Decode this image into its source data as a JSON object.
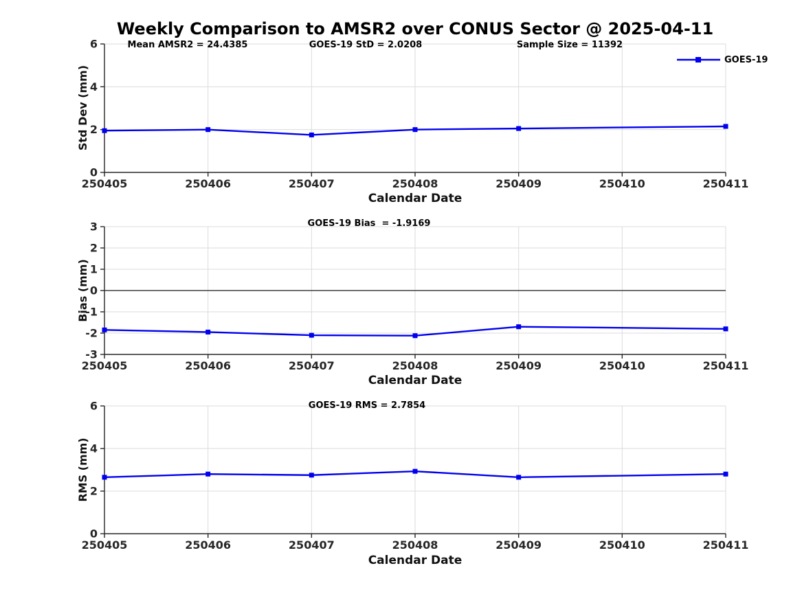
{
  "title": "Weekly Comparison to AMSR2 over CONUS Sector @ 2025-04-11",
  "legend": {
    "label": "GOES-19"
  },
  "colors": {
    "line": "#0000EE",
    "axis": "#262626",
    "grid": "#DBDBDB",
    "zero_line": "#404040",
    "background": "#FFFFFF"
  },
  "chart_data": [
    {
      "type": "line",
      "name": "std-dev",
      "ylabel": "Std Dev (mm)",
      "xlabel": "Calendar Date",
      "annotations": [
        "Mean AMSR2 = 24.4385",
        "GOES-19 StD = 2.0208",
        "Sample Size = 11392"
      ],
      "categories": [
        "250405",
        "250406",
        "250407",
        "250408",
        "250409",
        "250410",
        "250411"
      ],
      "ylim": [
        0,
        6
      ],
      "yticks": [
        0,
        2,
        4,
        6
      ],
      "grid": true,
      "zero_line": false,
      "legend_position": "top-right",
      "series": [
        {
          "name": "GOES-19",
          "color": "#0000EE",
          "marker": "square",
          "x": [
            "250405",
            "250406",
            "250407",
            "250408",
            "250409",
            "250411"
          ],
          "values": [
            1.95,
            2.0,
            1.75,
            2.0,
            2.05,
            2.15
          ]
        }
      ]
    },
    {
      "type": "line",
      "name": "bias",
      "ylabel": "Bias (mm)",
      "xlabel": "Calendar Date",
      "annotations": [
        "GOES-19 Bias  = -1.9169"
      ],
      "categories": [
        "250405",
        "250406",
        "250407",
        "250408",
        "250409",
        "250410",
        "250411"
      ],
      "ylim": [
        -3,
        3
      ],
      "yticks": [
        -3,
        -2,
        -1,
        0,
        1,
        2,
        3
      ],
      "grid": true,
      "zero_line": true,
      "series": [
        {
          "name": "GOES-19",
          "color": "#0000EE",
          "marker": "square",
          "x": [
            "250405",
            "250406",
            "250407",
            "250408",
            "250409",
            "250411"
          ],
          "values": [
            -1.85,
            -1.95,
            -2.1,
            -2.12,
            -1.7,
            -1.8
          ]
        }
      ]
    },
    {
      "type": "line",
      "name": "rms",
      "ylabel": "RMS (mm)",
      "xlabel": "Calendar Date",
      "annotations": [
        "GOES-19 RMS = 2.7854"
      ],
      "categories": [
        "250405",
        "250406",
        "250407",
        "250408",
        "250409",
        "250410",
        "250411"
      ],
      "ylim": [
        0,
        6
      ],
      "yticks": [
        0,
        2,
        4,
        6
      ],
      "grid": true,
      "zero_line": false,
      "series": [
        {
          "name": "GOES-19",
          "color": "#0000EE",
          "marker": "square",
          "x": [
            "250405",
            "250406",
            "250407",
            "250408",
            "250409",
            "250411"
          ],
          "values": [
            2.65,
            2.8,
            2.75,
            2.93,
            2.65,
            2.8
          ]
        }
      ]
    }
  ]
}
